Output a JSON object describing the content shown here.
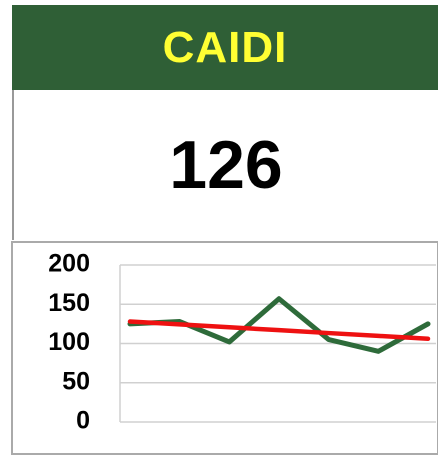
{
  "card": {
    "title": "CAIDI",
    "value": 126
  },
  "chart_data": {
    "type": "line",
    "categories": [
      null,
      null,
      null,
      null,
      null,
      null,
      null
    ],
    "series": [
      {
        "color": "#2e6b3a",
        "values": [
          125,
          128,
          102,
          157,
          105,
          90,
          125
        ]
      },
      {
        "color": "#ee1111",
        "values": [
          128,
          124.3,
          120.7,
          117,
          113.3,
          109.7,
          106
        ]
      }
    ],
    "ylim": [
      0,
      200
    ],
    "yticks": [
      0,
      50,
      100,
      150,
      200
    ],
    "grid": true
  }
}
